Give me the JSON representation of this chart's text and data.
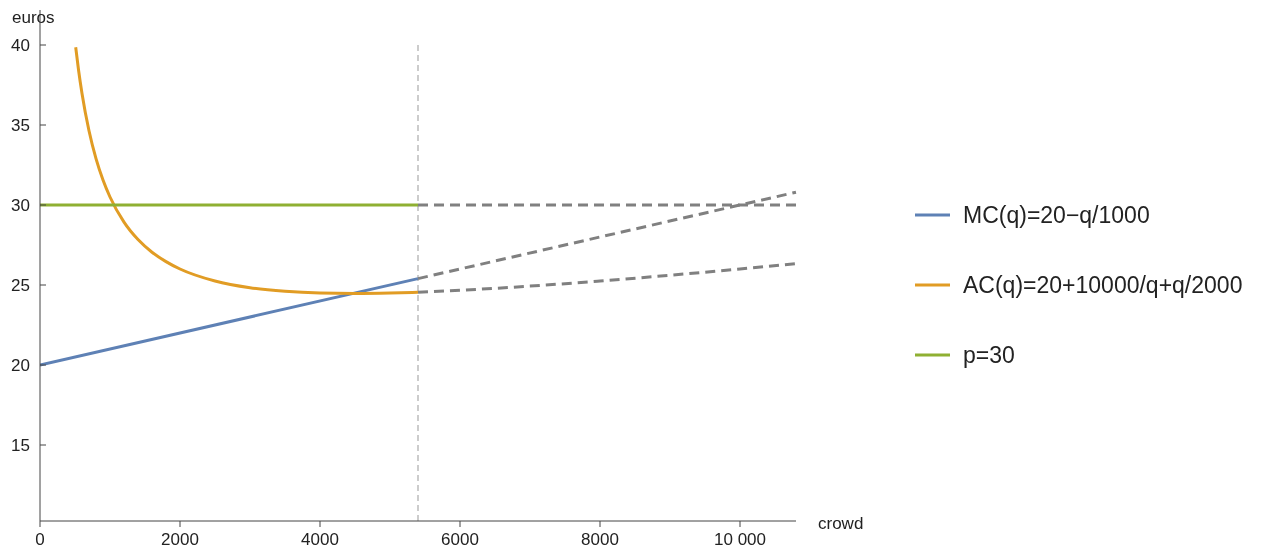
{
  "chart_data": {
    "type": "line",
    "xlabel": "crowd",
    "ylabel": "euros",
    "xlim": [
      0,
      10800
    ],
    "ylim": [
      10.25,
      40
    ],
    "xticks": [
      0,
      2000,
      4000,
      6000,
      8000,
      {
        "value": 10000,
        "label": "10 000"
      }
    ],
    "yticks": [
      15,
      20,
      25,
      30,
      35,
      40
    ],
    "grid": false,
    "legend": "right",
    "ref_lines": [
      {
        "axis": "x",
        "value": 5400,
        "color": "#999999",
        "line_style": "dashed"
      }
    ],
    "series": [
      {
        "name": "MC(q)=20−q/1000",
        "color": "#5e81b5",
        "line_style": "solid",
        "x": [
          0,
          5400
        ],
        "values": [
          20,
          25.4
        ]
      },
      {
        "name": "AC(q)=20+10000/q+q/2000",
        "color": "#e19c24",
        "line_style": "solid",
        "x": [
          510,
          550,
          600,
          700,
          800,
          900,
          1000,
          1200,
          1400,
          1600,
          1800,
          2000,
          2500,
          3000,
          3500,
          4000,
          4500,
          5000,
          5400
        ],
        "values": [
          39.86,
          38.45,
          36.97,
          34.64,
          32.9,
          31.56,
          30.5,
          28.93,
          27.84,
          27.05,
          26.46,
          26,
          25.25,
          24.83,
          24.61,
          24.5,
          24.47,
          24.5,
          24.55
        ]
      },
      {
        "name": "p=30",
        "color": "#8fb032",
        "line_style": "solid",
        "x": [
          0,
          5400
        ],
        "values": [
          30,
          30
        ]
      },
      {
        "color": "#808080",
        "line_style": "dashed",
        "x": [
          5400,
          10800
        ],
        "values": [
          25.4,
          30.8
        ]
      },
      {
        "color": "#808080",
        "line_style": "dashed",
        "x": [
          5400,
          6000,
          7000,
          8000,
          9000,
          10000,
          10800
        ],
        "values": [
          24.55,
          24.67,
          24.93,
          25.25,
          25.61,
          26,
          26.33
        ]
      },
      {
        "color": "#808080",
        "line_style": "dashed",
        "x": [
          5400,
          10800
        ],
        "values": [
          30,
          30
        ]
      }
    ]
  }
}
